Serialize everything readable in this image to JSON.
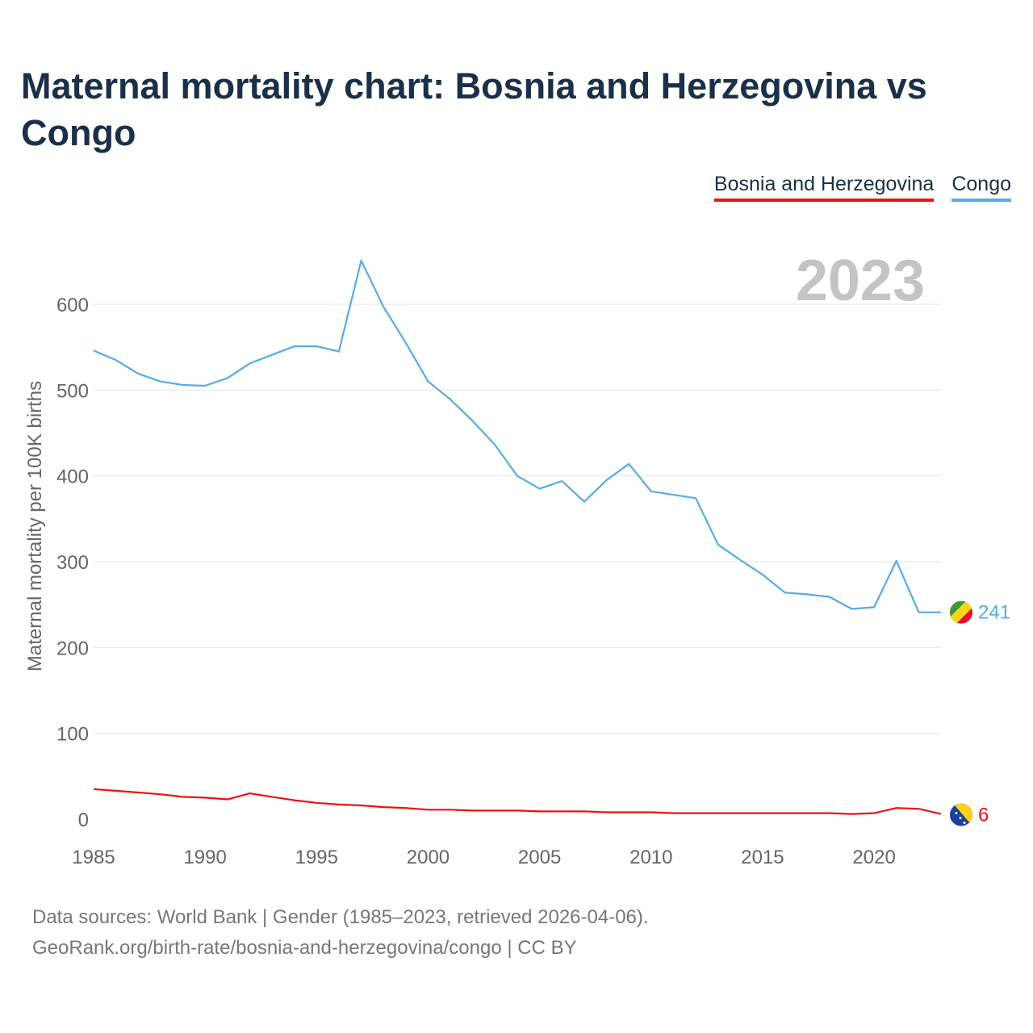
{
  "title": "Maternal mortality chart: Bosnia and Herzegovina vs Congo",
  "year_label": "2023",
  "footer": {
    "line1": "Data sources: World Bank | Gender (1985–2023, retrieved 2026-04-06).",
    "line2": "GeoRank.org/birth-rate/bosnia-and-herzegovina/congo | CC BY"
  },
  "chart_data": {
    "type": "line",
    "title": "Maternal mortality chart: Bosnia and Herzegovina vs Congo",
    "xlabel": "",
    "ylabel": "Maternal mortality per 100K births",
    "xlim": [
      1985,
      2023
    ],
    "ylim": [
      0,
      650
    ],
    "yticks": [
      0,
      100,
      200,
      300,
      400,
      500,
      600
    ],
    "xticks": [
      1985,
      1990,
      1995,
      2000,
      2005,
      2010,
      2015,
      2020
    ],
    "grid": true,
    "legend_position": "top-right",
    "x": [
      1985,
      1986,
      1987,
      1988,
      1989,
      1990,
      1991,
      1992,
      1993,
      1994,
      1995,
      1996,
      1997,
      1998,
      1999,
      2000,
      2001,
      2002,
      2003,
      2004,
      2005,
      2006,
      2007,
      2008,
      2009,
      2010,
      2011,
      2012,
      2013,
      2014,
      2015,
      2016,
      2017,
      2018,
      2019,
      2020,
      2021,
      2022,
      2023
    ],
    "series": [
      {
        "name": "Bosnia and Herzegovina",
        "color": "#ee1111",
        "end_label": "6",
        "values": [
          35,
          33,
          31,
          29,
          26,
          25,
          23,
          30,
          26,
          22,
          19,
          17,
          16,
          14,
          13,
          11,
          11,
          10,
          10,
          10,
          9,
          9,
          9,
          8,
          8,
          8,
          7,
          7,
          7,
          7,
          7,
          7,
          7,
          7,
          6,
          7,
          13,
          12,
          6
        ]
      },
      {
        "name": "Congo",
        "color": "#5aaae6",
        "end_label": "241",
        "values": [
          546,
          535,
          519,
          510,
          506,
          505,
          514,
          531,
          541,
          551,
          551,
          545,
          651,
          597,
          555,
          510,
          489,
          464,
          436,
          400,
          385,
          394,
          370,
          395,
          414,
          382,
          378,
          374,
          320,
          302,
          285,
          264,
          262,
          259,
          245,
          247,
          301,
          241,
          241
        ]
      }
    ]
  }
}
